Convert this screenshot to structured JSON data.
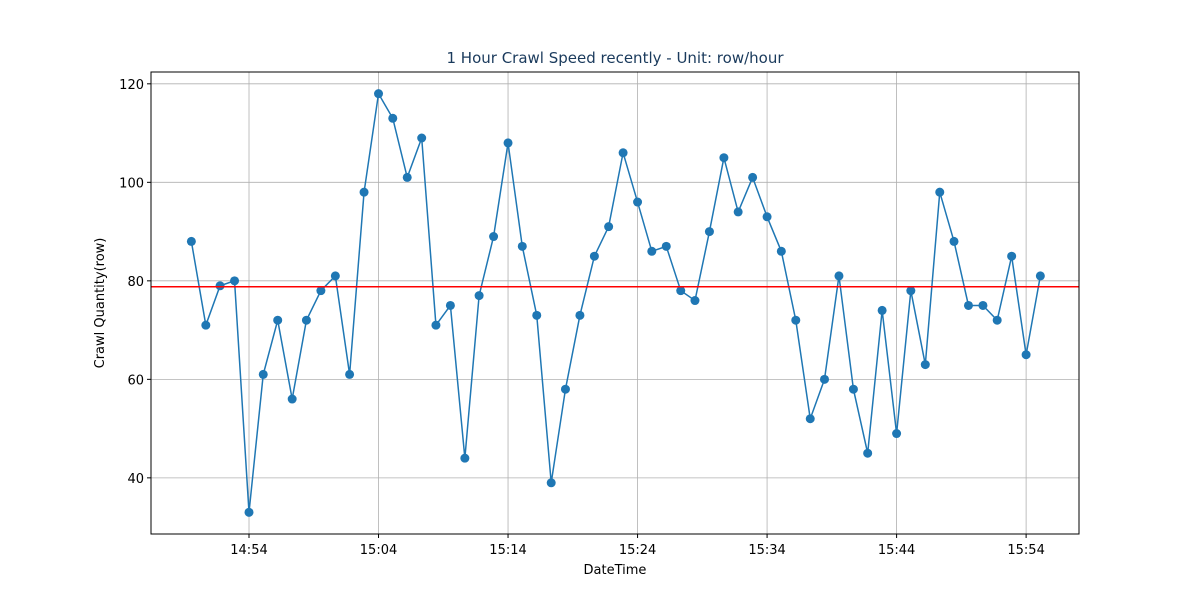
{
  "chart_data": {
    "type": "line",
    "title": "1 Hour Crawl Speed recently - Unit: row/hour",
    "x_label": "DateTime",
    "y_label": "Crawl Quantity(row)",
    "x": [
      "14:49:33",
      "14:50:40",
      "14:51:46",
      "14:52:53",
      "14:54:00",
      "14:55:06",
      "14:56:13",
      "14:57:20",
      "14:58:26",
      "14:59:33",
      "15:00:40",
      "15:01:46",
      "15:02:53",
      "15:04:00",
      "15:05:06",
      "15:06:13",
      "15:07:20",
      "15:08:26",
      "15:09:33",
      "15:10:40",
      "15:11:46",
      "15:12:53",
      "15:14:00",
      "15:15:06",
      "15:16:13",
      "15:17:20",
      "15:18:26",
      "15:19:33",
      "15:20:40",
      "15:21:46",
      "15:22:53",
      "15:24:00",
      "15:25:06",
      "15:26:13",
      "15:27:20",
      "15:28:26",
      "15:29:33",
      "15:30:40",
      "15:31:46",
      "15:32:53",
      "15:34:00",
      "15:35:06",
      "15:36:13",
      "15:37:20",
      "15:38:26",
      "15:39:33",
      "15:40:40",
      "15:41:46",
      "15:42:53",
      "15:44:00",
      "15:45:06",
      "15:46:13",
      "15:47:20",
      "15:48:26",
      "15:49:33",
      "15:50:40",
      "15:51:46",
      "15:52:53",
      "15:54:00",
      "15:55:06"
    ],
    "series": [
      {
        "color": "#1f77b4",
        "values": [
          88,
          71,
          79,
          80,
          33,
          61,
          72,
          56,
          72,
          78,
          81,
          61,
          98,
          118,
          113,
          101,
          109,
          71,
          75,
          44,
          77,
          89,
          108,
          87,
          73,
          39,
          58,
          73,
          85,
          91,
          106,
          96,
          86,
          87,
          78,
          76,
          90,
          105,
          94,
          101,
          93,
          86,
          72,
          52,
          60,
          81,
          58,
          45,
          74,
          49,
          78,
          63,
          98,
          88,
          75,
          75,
          72,
          85,
          65,
          81
        ]
      }
    ],
    "reference_line": {
      "value": 78.8,
      "color": "#ff0000"
    },
    "xlim": [
      "14:46:26",
      "15:58:05"
    ],
    "xticks": [
      "14:54",
      "15:04",
      "15:14",
      "15:24",
      "15:34",
      "15:44",
      "15:54"
    ],
    "ylim": [
      28.6,
      122.4
    ],
    "yticks": [
      40,
      60,
      80,
      100,
      120
    ],
    "grid": true
  }
}
